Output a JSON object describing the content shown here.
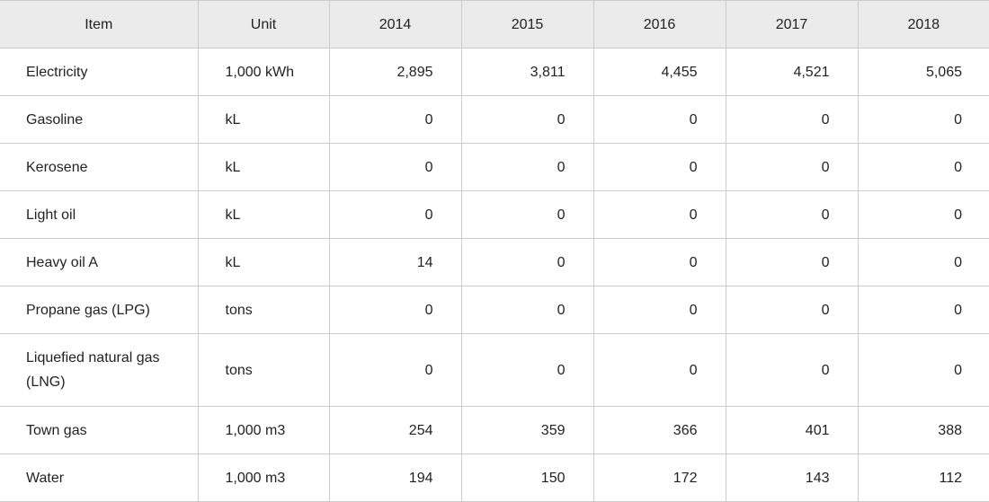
{
  "table": {
    "headers": [
      "Item",
      "Unit",
      "2014",
      "2015",
      "2016",
      "2017",
      "2018"
    ],
    "rows": [
      {
        "item": "Electricity",
        "unit": "1,000 kWh",
        "values": [
          "2,895",
          "3,811",
          "4,455",
          "4,521",
          "5,065"
        ]
      },
      {
        "item": "Gasoline",
        "unit": "kL",
        "values": [
          "0",
          "0",
          "0",
          "0",
          "0"
        ]
      },
      {
        "item": "Kerosene",
        "unit": "kL",
        "values": [
          "0",
          "0",
          "0",
          "0",
          "0"
        ]
      },
      {
        "item": "Light oil",
        "unit": "kL",
        "values": [
          "0",
          "0",
          "0",
          "0",
          "0"
        ]
      },
      {
        "item": "Heavy oil A",
        "unit": "kL",
        "values": [
          "14",
          "0",
          "0",
          "0",
          "0"
        ]
      },
      {
        "item": "Propane gas (LPG)",
        "unit": "tons",
        "values": [
          "0",
          "0",
          "0",
          "0",
          "0"
        ]
      },
      {
        "item": "Liquefied natural gas (LNG)",
        "unit": "tons",
        "values": [
          "0",
          "0",
          "0",
          "0",
          "0"
        ]
      },
      {
        "item": "Town gas",
        "unit": "1,000 m3",
        "values": [
          "254",
          "359",
          "366",
          "401",
          "388"
        ]
      },
      {
        "item": "Water",
        "unit": "1,000 m3",
        "values": [
          "194",
          "150",
          "172",
          "143",
          "112"
        ]
      }
    ]
  }
}
